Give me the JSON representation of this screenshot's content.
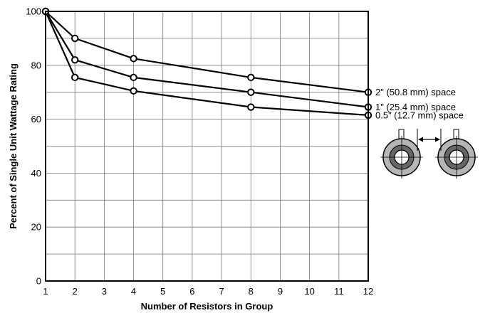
{
  "chart_data": {
    "type": "line",
    "xlabel": "Number of Resistors in Group",
    "ylabel": "Percent of Single Unit Wattage Rating",
    "xlim": [
      1,
      12
    ],
    "ylim": [
      0,
      100
    ],
    "x_ticks": [
      1,
      2,
      3,
      4,
      5,
      6,
      7,
      8,
      9,
      10,
      11,
      12
    ],
    "y_ticks": [
      0,
      20,
      40,
      60,
      80,
      100
    ],
    "grid": true,
    "series": [
      {
        "name": "2\" (50.8 mm) space",
        "x": [
          1,
          2,
          4,
          8,
          12
        ],
        "y": [
          100,
          90,
          82.5,
          75.5,
          70
        ]
      },
      {
        "name": "1\" (25.4 mm) space",
        "x": [
          1,
          2,
          4,
          8,
          12
        ],
        "y": [
          100,
          82,
          75.5,
          70,
          64.5
        ]
      },
      {
        "name": "0.5\" (12.7 mm) space",
        "x": [
          1,
          2,
          4,
          8,
          12
        ],
        "y": [
          100,
          75.5,
          70.5,
          64.5,
          61.5
        ]
      }
    ]
  }
}
